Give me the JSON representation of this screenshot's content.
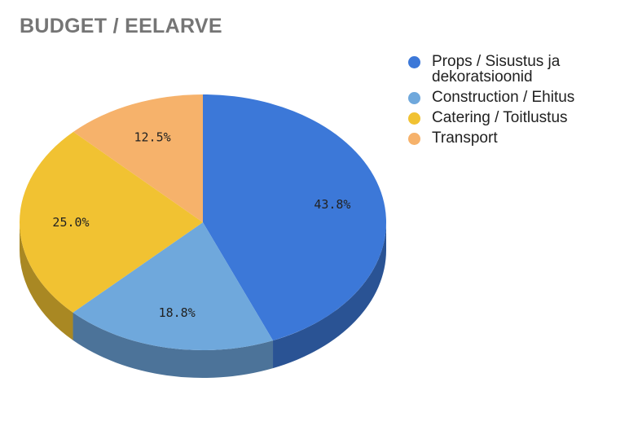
{
  "title": "BUDGET / EELARVE",
  "chart_data": {
    "type": "pie",
    "is_3d": true,
    "title": "BUDGET / EELARVE",
    "categories": [
      "Props / Sisustus ja dekoratsioonid",
      "Construction / Ehitus",
      "Catering / Toitlustus",
      "Transport"
    ],
    "values": [
      43.8,
      18.8,
      25.0,
      12.5
    ],
    "value_labels": [
      "43.8%",
      "18.8%",
      "25.0%",
      "12.5%"
    ],
    "colors": [
      "#3c78d8",
      "#6fa8dc",
      "#f1c232",
      "#f6b26b"
    ],
    "side_colors": [
      "#2a5394",
      "#4c7399",
      "#a98823",
      "#ac7c4b"
    ],
    "legend_position": "right"
  }
}
